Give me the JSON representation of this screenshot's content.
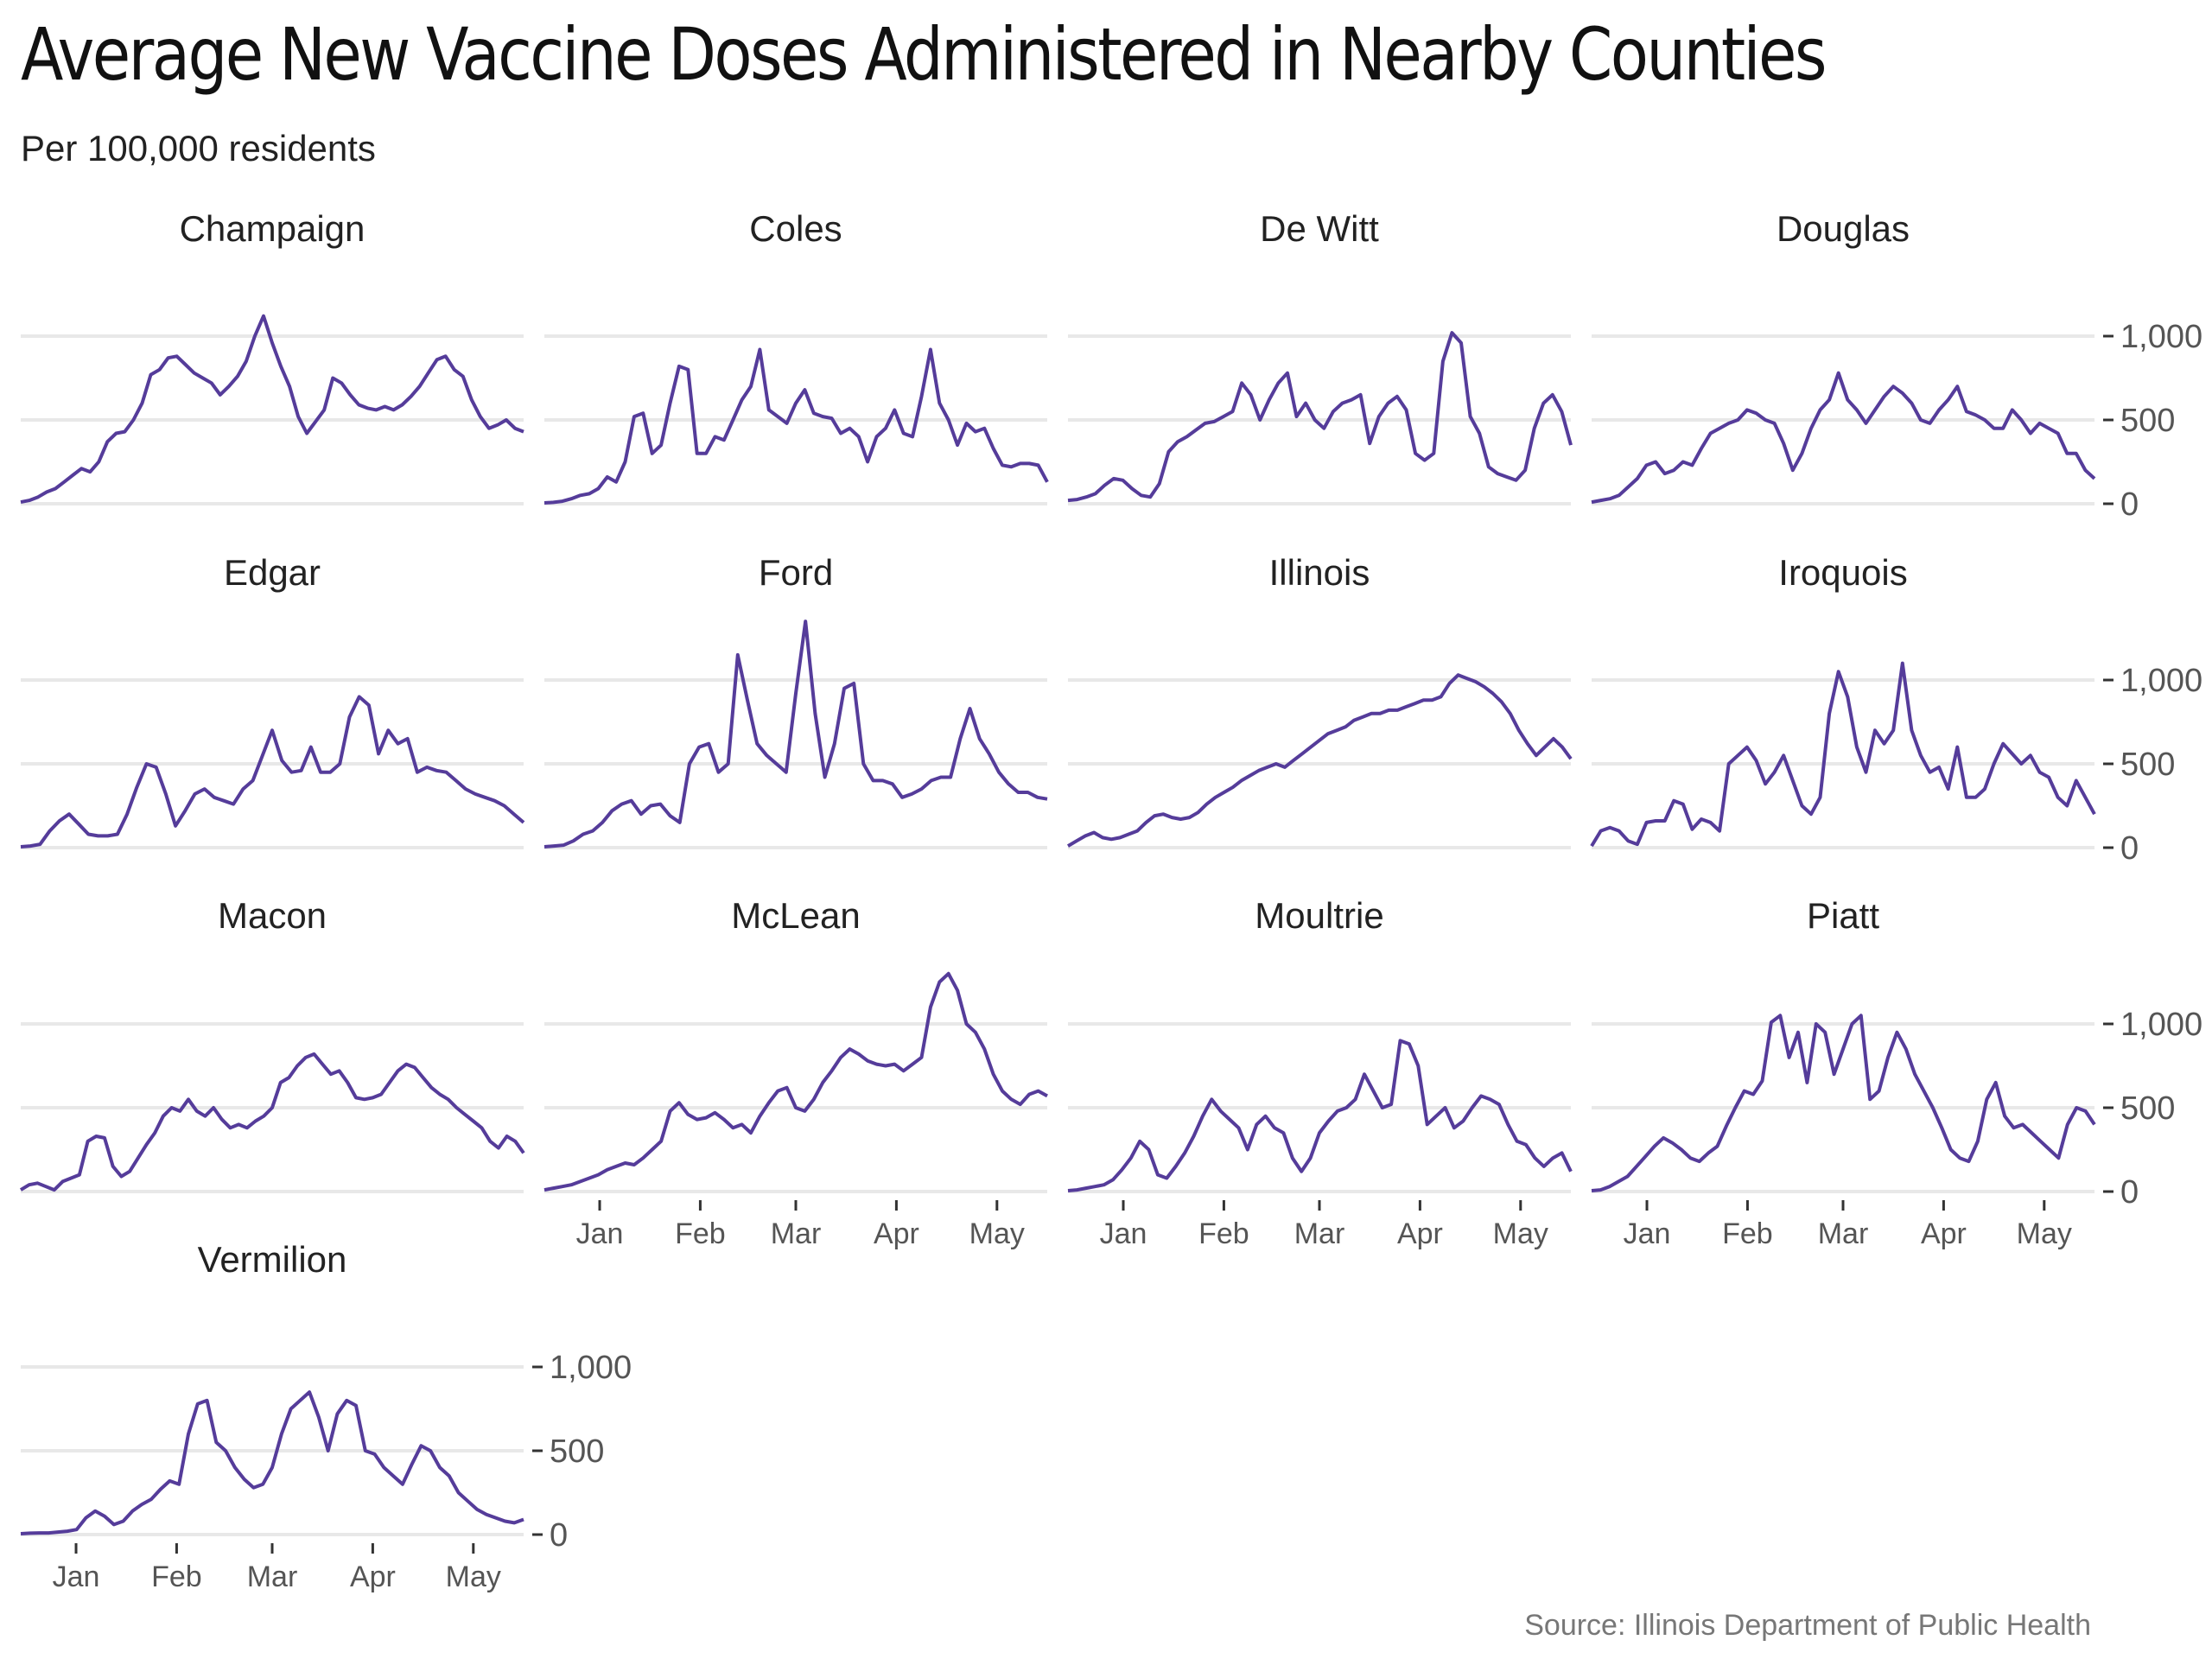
{
  "title": "Average New Vaccine Doses Administered in Nearby Counties",
  "subtitle": "Per 100,000 residents",
  "caption": "Source: Illinois Department of Public Health",
  "colors": {
    "line": "#553c9a",
    "grid": "#e8e8e8",
    "tick": "#333333"
  },
  "chart_data": {
    "type": "line",
    "facet": "small-multiples",
    "x_ticks": [
      "Jan",
      "Feb",
      "Mar",
      "Apr",
      "May"
    ],
    "y_ticks": [
      0,
      500,
      1000
    ],
    "y_tick_labels": [
      "0",
      "500",
      "1,000"
    ],
    "ylim": [
      0,
      1400
    ],
    "grid": true,
    "panels": [
      {
        "name": "Champaign",
        "values": [
          10,
          20,
          40,
          70,
          90,
          130,
          170,
          210,
          190,
          250,
          370,
          420,
          430,
          500,
          600,
          770,
          800,
          870,
          880,
          830,
          780,
          750,
          720,
          650,
          700,
          760,
          850,
          1000,
          1120,
          960,
          820,
          700,
          520,
          420,
          490,
          560,
          750,
          720,
          650,
          590,
          570,
          560,
          580,
          560,
          590,
          640,
          700,
          780,
          860,
          880,
          800,
          760,
          620,
          520,
          450,
          470,
          500,
          450,
          430
        ]
      },
      {
        "name": "Coles",
        "values": [
          5,
          8,
          15,
          30,
          50,
          60,
          90,
          160,
          130,
          250,
          520,
          540,
          300,
          350,
          600,
          820,
          800,
          300,
          300,
          400,
          380,
          500,
          620,
          700,
          920,
          560,
          520,
          480,
          600,
          680,
          540,
          520,
          510,
          420,
          450,
          400,
          250,
          400,
          450,
          560,
          420,
          400,
          640,
          920,
          600,
          500,
          350,
          480,
          430,
          450,
          330,
          230,
          220,
          240,
          240,
          230,
          130
        ]
      },
      {
        "name": "De Witt",
        "values": [
          20,
          25,
          40,
          60,
          110,
          150,
          140,
          90,
          50,
          40,
          120,
          310,
          370,
          400,
          440,
          480,
          490,
          520,
          550,
          720,
          650,
          500,
          620,
          720,
          780,
          520,
          600,
          500,
          450,
          550,
          600,
          620,
          650,
          360,
          520,
          600,
          640,
          560,
          300,
          260,
          300,
          850,
          1020,
          960,
          520,
          420,
          220,
          180,
          160,
          140,
          200,
          450,
          600,
          650,
          550,
          350
        ]
      },
      {
        "name": "Douglas",
        "values": [
          10,
          20,
          30,
          50,
          100,
          150,
          230,
          250,
          180,
          200,
          250,
          230,
          330,
          420,
          450,
          480,
          500,
          560,
          540,
          500,
          480,
          360,
          200,
          300,
          450,
          560,
          620,
          780,
          620,
          560,
          480,
          560,
          640,
          700,
          660,
          600,
          500,
          480,
          560,
          620,
          700,
          550,
          530,
          500,
          450,
          450,
          560,
          500,
          420,
          480,
          450,
          420,
          300,
          300,
          200,
          150
        ]
      },
      {
        "name": "Edgar",
        "values": [
          5,
          10,
          20,
          100,
          160,
          200,
          140,
          80,
          70,
          70,
          80,
          200,
          360,
          500,
          480,
          320,
          130,
          220,
          320,
          350,
          300,
          280,
          260,
          350,
          400,
          550,
          700,
          520,
          450,
          460,
          600,
          450,
          450,
          500,
          780,
          900,
          850,
          560,
          700,
          620,
          650,
          450,
          480,
          460,
          450,
          400,
          350,
          320,
          300,
          280,
          250,
          200,
          150
        ]
      },
      {
        "name": "Ford",
        "values": [
          5,
          10,
          15,
          40,
          80,
          100,
          150,
          220,
          260,
          280,
          200,
          250,
          260,
          190,
          150,
          500,
          600,
          620,
          450,
          500,
          1150,
          880,
          620,
          550,
          500,
          450,
          920,
          1350,
          800,
          420,
          620,
          950,
          980,
          500,
          400,
          400,
          380,
          300,
          320,
          350,
          400,
          420,
          420,
          650,
          830,
          650,
          560,
          450,
          380,
          330,
          330,
          300,
          290
        ]
      },
      {
        "name": "Illinois",
        "values": [
          10,
          40,
          70,
          90,
          60,
          50,
          60,
          80,
          100,
          150,
          190,
          200,
          180,
          170,
          180,
          210,
          260,
          300,
          330,
          360,
          400,
          430,
          460,
          480,
          500,
          480,
          520,
          560,
          600,
          640,
          680,
          700,
          720,
          760,
          780,
          800,
          800,
          820,
          820,
          840,
          860,
          880,
          880,
          900,
          980,
          1030,
          1010,
          990,
          960,
          920,
          870,
          800,
          700,
          620,
          550,
          600,
          650,
          600,
          530
        ]
      },
      {
        "name": "Iroquois",
        "values": [
          10,
          100,
          120,
          100,
          40,
          20,
          150,
          160,
          160,
          280,
          260,
          110,
          170,
          150,
          100,
          500,
          550,
          600,
          520,
          380,
          450,
          550,
          400,
          250,
          200,
          300,
          800,
          1050,
          900,
          600,
          450,
          700,
          620,
          700,
          1100,
          700,
          550,
          450,
          480,
          350,
          600,
          300,
          300,
          350,
          500,
          620,
          560,
          500,
          550,
          450,
          420,
          300,
          250,
          400,
          300,
          200
        ]
      },
      {
        "name": "Macon",
        "values": [
          10,
          40,
          50,
          30,
          10,
          60,
          80,
          100,
          300,
          330,
          320,
          150,
          90,
          120,
          200,
          280,
          350,
          450,
          500,
          480,
          550,
          480,
          450,
          500,
          430,
          380,
          400,
          380,
          420,
          450,
          500,
          650,
          680,
          750,
          800,
          820,
          760,
          700,
          720,
          650,
          560,
          550,
          560,
          580,
          650,
          720,
          760,
          740,
          680,
          620,
          580,
          550,
          500,
          460,
          420,
          380,
          300,
          260,
          330,
          300,
          230
        ]
      },
      {
        "name": "McLean",
        "values": [
          10,
          20,
          30,
          40,
          60,
          80,
          100,
          130,
          150,
          170,
          160,
          200,
          250,
          300,
          480,
          530,
          460,
          430,
          440,
          470,
          430,
          380,
          400,
          350,
          450,
          530,
          600,
          620,
          500,
          480,
          550,
          650,
          720,
          800,
          850,
          820,
          780,
          760,
          750,
          760,
          720,
          760,
          800,
          1100,
          1250,
          1300,
          1200,
          1000,
          950,
          850,
          700,
          600,
          550,
          520,
          580,
          600,
          570
        ]
      },
      {
        "name": "Moultrie",
        "values": [
          5,
          10,
          20,
          30,
          40,
          70,
          130,
          200,
          300,
          250,
          100,
          80,
          150,
          230,
          330,
          450,
          550,
          480,
          430,
          380,
          250,
          400,
          450,
          380,
          350,
          200,
          120,
          200,
          350,
          420,
          480,
          500,
          550,
          700,
          600,
          500,
          520,
          900,
          880,
          750,
          400,
          450,
          500,
          380,
          420,
          500,
          570,
          550,
          520,
          400,
          300,
          280,
          200,
          150,
          200,
          230,
          120
        ]
      },
      {
        "name": "Piatt",
        "values": [
          5,
          10,
          30,
          60,
          90,
          150,
          210,
          270,
          320,
          290,
          250,
          200,
          180,
          230,
          270,
          390,
          500,
          600,
          580,
          660,
          1010,
          1050,
          800,
          950,
          650,
          1000,
          950,
          700,
          850,
          1000,
          1050,
          550,
          600,
          800,
          950,
          850,
          700,
          600,
          500,
          380,
          250,
          200,
          180,
          300,
          550,
          650,
          450,
          380,
          400,
          350,
          300,
          250,
          200,
          400,
          500,
          480,
          400
        ]
      },
      {
        "name": "Vermilion",
        "values": [
          5,
          8,
          10,
          10,
          15,
          20,
          30,
          100,
          140,
          110,
          60,
          80,
          140,
          180,
          210,
          270,
          320,
          300,
          600,
          780,
          800,
          550,
          500,
          400,
          330,
          280,
          300,
          400,
          600,
          750,
          800,
          850,
          700,
          500,
          720,
          800,
          770,
          500,
          480,
          400,
          350,
          300,
          420,
          530,
          500,
          400,
          350,
          250,
          200,
          150,
          120,
          100,
          80,
          70,
          90
        ]
      }
    ]
  }
}
